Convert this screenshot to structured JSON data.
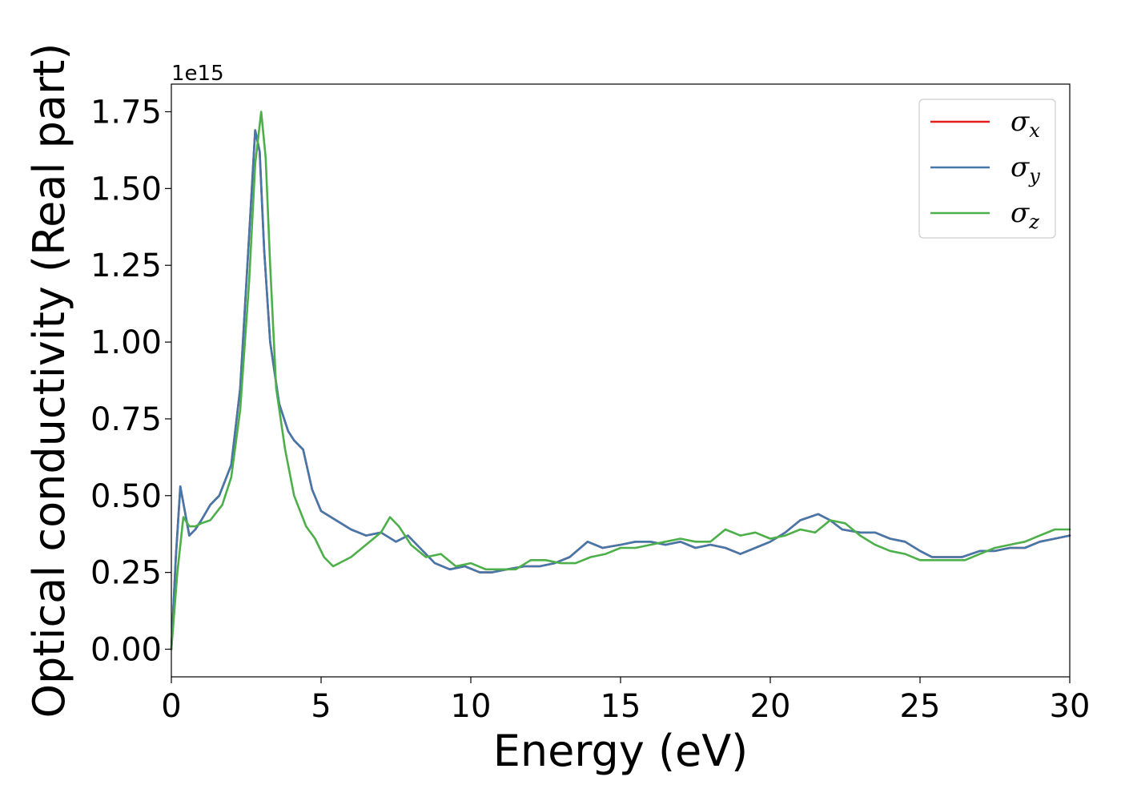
{
  "chart_data": {
    "type": "line",
    "xlabel": "Energy (eV)",
    "ylabel": "Optical conductivity (Real part)",
    "y_offset_text": "1e15",
    "y_multiplier": 1000000000000000.0,
    "xlim": [
      0,
      30
    ],
    "ylim": [
      -0.09,
      1.84
    ],
    "xticks": [
      0,
      5,
      10,
      15,
      20,
      25,
      30
    ],
    "xtick_labels": [
      "0",
      "5",
      "10",
      "15",
      "20",
      "25",
      "30"
    ],
    "yticks": [
      0.0,
      0.25,
      0.5,
      0.75,
      1.0,
      1.25,
      1.5,
      1.75
    ],
    "ytick_labels": [
      "0.00",
      "0.25",
      "0.50",
      "0.75",
      "1.00",
      "1.25",
      "1.50",
      "1.75"
    ],
    "grid": false,
    "legend_position": "top-right",
    "series": [
      {
        "name": "σx",
        "legend_symbol": "σ",
        "legend_subscript": "x",
        "color": "#e41a1c",
        "x": [
          0,
          0.15,
          0.3,
          0.45,
          0.6,
          0.8,
          1.0,
          1.3,
          1.6,
          2.0,
          2.3,
          2.6,
          2.8,
          2.95,
          3.1,
          3.3,
          3.6,
          3.9,
          4.1,
          4.4,
          4.7,
          5.0,
          5.5,
          6.0,
          6.5,
          7.0,
          7.5,
          7.9,
          8.3,
          8.8,
          9.3,
          9.8,
          10.3,
          10.7,
          11.2,
          11.8,
          12.3,
          12.8,
          13.3,
          13.9,
          14.4,
          15.0,
          15.5,
          16.0,
          16.5,
          17.0,
          17.5,
          18.0,
          18.5,
          19.0,
          19.5,
          20.0,
          20.5,
          21.0,
          21.6,
          22.0,
          22.4,
          23.0,
          23.5,
          24.0,
          24.5,
          25.0,
          25.4,
          25.9,
          26.4,
          27.0,
          27.5,
          28.0,
          28.5,
          29.0,
          29.5,
          30.0
        ],
        "values": [
          0.0,
          0.3,
          0.53,
          0.45,
          0.37,
          0.39,
          0.42,
          0.47,
          0.5,
          0.6,
          0.85,
          1.35,
          1.69,
          1.62,
          1.3,
          1.0,
          0.8,
          0.71,
          0.68,
          0.65,
          0.52,
          0.45,
          0.42,
          0.39,
          0.37,
          0.38,
          0.35,
          0.37,
          0.33,
          0.28,
          0.26,
          0.27,
          0.25,
          0.25,
          0.26,
          0.27,
          0.27,
          0.28,
          0.3,
          0.35,
          0.33,
          0.34,
          0.35,
          0.35,
          0.34,
          0.35,
          0.33,
          0.34,
          0.33,
          0.31,
          0.33,
          0.35,
          0.38,
          0.42,
          0.44,
          0.42,
          0.39,
          0.38,
          0.38,
          0.36,
          0.35,
          0.32,
          0.3,
          0.3,
          0.3,
          0.32,
          0.32,
          0.33,
          0.33,
          0.35,
          0.36,
          0.37
        ]
      },
      {
        "name": "σy",
        "legend_symbol": "σ",
        "legend_subscript": "y",
        "color": "#4477aa",
        "x": [
          0,
          0.15,
          0.3,
          0.45,
          0.6,
          0.8,
          1.0,
          1.3,
          1.6,
          2.0,
          2.3,
          2.6,
          2.8,
          2.95,
          3.1,
          3.3,
          3.6,
          3.9,
          4.1,
          4.4,
          4.7,
          5.0,
          5.5,
          6.0,
          6.5,
          7.0,
          7.5,
          7.9,
          8.3,
          8.8,
          9.3,
          9.8,
          10.3,
          10.7,
          11.2,
          11.8,
          12.3,
          12.8,
          13.3,
          13.9,
          14.4,
          15.0,
          15.5,
          16.0,
          16.5,
          17.0,
          17.5,
          18.0,
          18.5,
          19.0,
          19.5,
          20.0,
          20.5,
          21.0,
          21.6,
          22.0,
          22.4,
          23.0,
          23.5,
          24.0,
          24.5,
          25.0,
          25.4,
          25.9,
          26.4,
          27.0,
          27.5,
          28.0,
          28.5,
          29.0,
          29.5,
          30.0
        ],
        "values": [
          0.0,
          0.3,
          0.53,
          0.45,
          0.37,
          0.39,
          0.42,
          0.47,
          0.5,
          0.6,
          0.85,
          1.35,
          1.69,
          1.62,
          1.3,
          1.0,
          0.8,
          0.71,
          0.68,
          0.65,
          0.52,
          0.45,
          0.42,
          0.39,
          0.37,
          0.38,
          0.35,
          0.37,
          0.33,
          0.28,
          0.26,
          0.27,
          0.25,
          0.25,
          0.26,
          0.27,
          0.27,
          0.28,
          0.3,
          0.35,
          0.33,
          0.34,
          0.35,
          0.35,
          0.34,
          0.35,
          0.33,
          0.34,
          0.33,
          0.31,
          0.33,
          0.35,
          0.38,
          0.42,
          0.44,
          0.42,
          0.39,
          0.38,
          0.38,
          0.36,
          0.35,
          0.32,
          0.3,
          0.3,
          0.3,
          0.32,
          0.32,
          0.33,
          0.33,
          0.35,
          0.36,
          0.37
        ]
      },
      {
        "name": "σz",
        "legend_symbol": "σ",
        "legend_subscript": "z",
        "color": "#4daf4a",
        "x": [
          0,
          0.2,
          0.4,
          0.6,
          0.8,
          1.0,
          1.3,
          1.7,
          2.0,
          2.3,
          2.6,
          2.8,
          3.0,
          3.15,
          3.3,
          3.5,
          3.8,
          4.1,
          4.5,
          4.8,
          5.1,
          5.4,
          6.0,
          6.5,
          7.0,
          7.3,
          7.6,
          8.0,
          8.5,
          9.0,
          9.5,
          10.0,
          10.5,
          11.0,
          11.5,
          12.0,
          12.5,
          13.0,
          13.5,
          14.0,
          14.5,
          15.0,
          15.5,
          16.0,
          16.5,
          17.0,
          17.5,
          18.0,
          18.5,
          19.0,
          19.5,
          20.0,
          20.5,
          21.0,
          21.5,
          22.0,
          22.5,
          23.0,
          23.5,
          24.0,
          24.5,
          25.0,
          25.5,
          26.0,
          26.5,
          27.0,
          27.5,
          28.0,
          28.5,
          29.0,
          29.5,
          30.0
        ],
        "values": [
          0.0,
          0.25,
          0.43,
          0.4,
          0.4,
          0.41,
          0.42,
          0.47,
          0.56,
          0.78,
          1.2,
          1.58,
          1.75,
          1.6,
          1.25,
          0.85,
          0.65,
          0.5,
          0.4,
          0.36,
          0.3,
          0.27,
          0.3,
          0.34,
          0.38,
          0.43,
          0.4,
          0.34,
          0.3,
          0.31,
          0.27,
          0.28,
          0.26,
          0.26,
          0.26,
          0.29,
          0.29,
          0.28,
          0.28,
          0.3,
          0.31,
          0.33,
          0.33,
          0.34,
          0.35,
          0.36,
          0.35,
          0.35,
          0.39,
          0.37,
          0.38,
          0.36,
          0.37,
          0.39,
          0.38,
          0.42,
          0.41,
          0.37,
          0.34,
          0.32,
          0.31,
          0.29,
          0.29,
          0.29,
          0.29,
          0.31,
          0.33,
          0.34,
          0.35,
          0.37,
          0.39,
          0.39
        ]
      }
    ]
  }
}
